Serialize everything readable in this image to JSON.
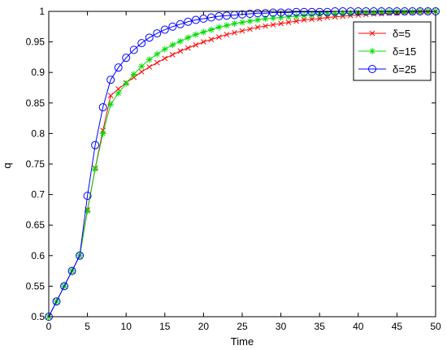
{
  "chart_data": {
    "type": "line",
    "xlabel": "Time",
    "ylabel": "q",
    "xlim": [
      0,
      50
    ],
    "ylim": [
      0.5,
      1
    ],
    "xticks": [
      "0",
      "5",
      "10",
      "15",
      "20",
      "25",
      "30",
      "35",
      "40",
      "45",
      "50"
    ],
    "yticks": [
      "0.5",
      "0.55",
      "0.6",
      "0.65",
      "0.7",
      "0.75",
      "0.8",
      "0.85",
      "0.9",
      "0.95",
      "1"
    ],
    "grid": false,
    "legend_position": "top-right",
    "x": [
      0,
      1,
      2,
      3,
      4,
      5,
      6,
      7,
      8,
      9,
      10,
      11,
      12,
      13,
      14,
      15,
      16,
      17,
      18,
      19,
      20,
      21,
      22,
      23,
      24,
      25,
      26,
      27,
      28,
      29,
      30,
      31,
      32,
      33,
      34,
      35,
      36,
      37,
      38,
      39,
      40,
      41,
      42,
      43,
      44,
      45,
      46,
      47,
      48,
      49,
      50
    ],
    "series": [
      {
        "name": "δ=5",
        "color": "#ff0000",
        "marker": "x",
        "values": [
          0.5,
          0.525,
          0.55,
          0.575,
          0.6,
          0.675,
          0.743,
          0.805,
          0.862,
          0.873,
          0.883,
          0.892,
          0.901,
          0.909,
          0.916,
          0.923,
          0.929,
          0.935,
          0.94,
          0.945,
          0.95,
          0.954,
          0.958,
          0.962,
          0.965,
          0.968,
          0.971,
          0.974,
          0.976,
          0.978,
          0.98,
          0.982,
          0.984,
          0.986,
          0.987,
          0.988,
          0.99,
          0.991,
          0.992,
          0.993,
          0.994,
          0.995,
          0.996,
          0.996,
          0.997,
          0.997,
          0.998,
          0.998,
          0.999,
          0.999,
          1.0
        ]
      },
      {
        "name": "δ=15",
        "color": "#00dd00",
        "marker": "star",
        "values": [
          0.5,
          0.525,
          0.55,
          0.575,
          0.6,
          0.673,
          0.742,
          0.8,
          0.848,
          0.866,
          0.882,
          0.897,
          0.91,
          0.921,
          0.93,
          0.938,
          0.945,
          0.951,
          0.957,
          0.962,
          0.966,
          0.97,
          0.974,
          0.977,
          0.98,
          0.982,
          0.984,
          0.986,
          0.988,
          0.989,
          0.99,
          0.991,
          0.992,
          0.993,
          0.994,
          0.995,
          0.996,
          0.996,
          0.997,
          0.997,
          0.998,
          0.998,
          0.998,
          0.999,
          0.999,
          0.999,
          0.999,
          0.999,
          1.0,
          1.0,
          1.0
        ]
      },
      {
        "name": "δ=25",
        "color": "#0000ff",
        "marker": "circle",
        "values": [
          0.5,
          0.525,
          0.55,
          0.575,
          0.6,
          0.698,
          0.781,
          0.843,
          0.888,
          0.908,
          0.924,
          0.937,
          0.948,
          0.957,
          0.964,
          0.97,
          0.975,
          0.979,
          0.983,
          0.986,
          0.988,
          0.99,
          0.992,
          0.993,
          0.994,
          0.995,
          0.996,
          0.997,
          0.997,
          0.998,
          0.998,
          0.998,
          0.999,
          0.999,
          0.999,
          0.999,
          0.999,
          1.0,
          1.0,
          1.0,
          1.0,
          1.0,
          1.0,
          1.0,
          1.0,
          1.0,
          1.0,
          1.0,
          1.0,
          1.0,
          1.0
        ]
      }
    ]
  }
}
